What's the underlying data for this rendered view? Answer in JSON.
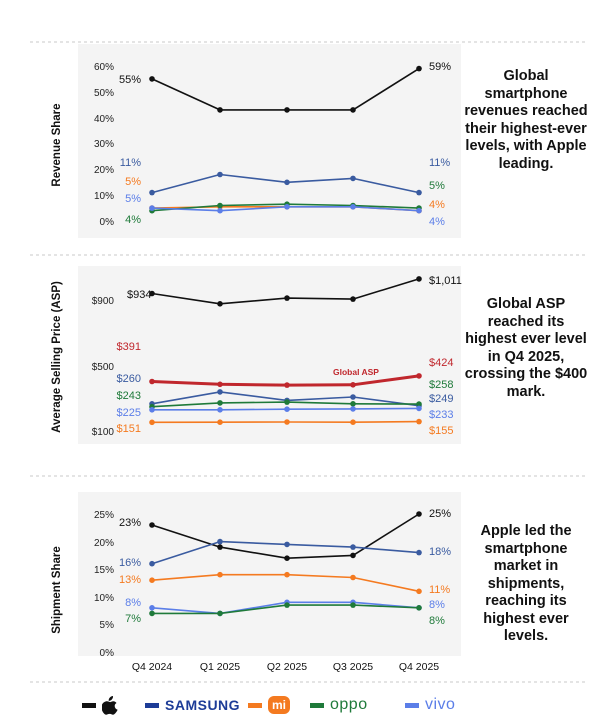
{
  "chart_data": [
    {
      "type": "line",
      "ylabel": "Revenue Share",
      "ylim": [
        0,
        60
      ],
      "yticks": [
        "0%",
        "10%",
        "20%",
        "30%",
        "40%",
        "50%",
        "60%"
      ],
      "categories": [
        "Q4 2024",
        "Q1 2025",
        "Q2 2025",
        "Q3 2025",
        "Q4 2025"
      ],
      "series": [
        {
          "brand": "apple",
          "color": "#111111",
          "values": [
            55,
            43,
            43,
            43,
            59
          ],
          "start_label": "55%",
          "end_label": "59%"
        },
        {
          "brand": "samsung",
          "color": "#3a5ba0",
          "values": [
            11,
            18,
            15,
            16.5,
            11
          ],
          "start_label": "11%",
          "end_label": "11%"
        },
        {
          "brand": "xiaomi",
          "color": "#f47a20",
          "values": [
            5,
            5.5,
            5.5,
            5.5,
            4
          ],
          "start_label": "5%",
          "end_label": "4%"
        },
        {
          "brand": "oppo",
          "color": "#1f7a3a",
          "values": [
            4,
            6,
            6.5,
            6,
            5
          ],
          "start_label": "4%",
          "end_label": "5%"
        },
        {
          "brand": "vivo",
          "color": "#5b7ee8",
          "values": [
            5,
            4,
            5.5,
            5.5,
            4
          ],
          "start_label": "5%",
          "end_label": "4%"
        }
      ],
      "caption": "Global smartphone revenues reached their highest-ever levels, with Apple leading."
    },
    {
      "type": "line",
      "ylabel": "Average Selling Price (ASP)",
      "yticks": [
        "$100",
        "$500",
        "$900"
      ],
      "categories": [
        "Q4 2024",
        "Q1 2025",
        "Q2 2025",
        "Q3 2025",
        "Q4 2025"
      ],
      "series": [
        {
          "brand": "apple",
          "color": "#111111",
          "values": [
            934,
            880,
            910,
            905,
            1011
          ],
          "start_label": "$934",
          "end_label": "$1,011"
        },
        {
          "name": "Global ASP",
          "color": "#c0272d",
          "values": [
            391,
            375,
            370,
            372,
            424
          ],
          "start_label": "$391",
          "end_label": "$424"
        },
        {
          "brand": "samsung",
          "color": "#3a5ba0",
          "values": [
            260,
            330,
            280,
            300,
            249
          ],
          "start_label": "$260",
          "end_label": "$249"
        },
        {
          "brand": "oppo",
          "color": "#1f7a3a",
          "values": [
            243,
            265,
            270,
            260,
            258
          ],
          "start_label": "$243",
          "end_label": "$258"
        },
        {
          "brand": "vivo",
          "color": "#5b7ee8",
          "values": [
            225,
            225,
            228,
            230,
            233
          ],
          "start_label": "$225",
          "end_label": "$233"
        },
        {
          "brand": "xiaomi",
          "color": "#f47a20",
          "values": [
            151,
            152,
            153,
            152,
            155
          ],
          "start_label": "$151",
          "end_label": "$155"
        }
      ],
      "caption": "Global ASP reached its highest ever level in Q4 2025, crossing the $400 mark."
    },
    {
      "type": "line",
      "ylabel": "Shipment Share",
      "ylim": [
        0,
        25
      ],
      "yticks": [
        "0%",
        "5%",
        "10%",
        "15%",
        "20%",
        "25%"
      ],
      "categories": [
        "Q4 2024",
        "Q1 2025",
        "Q2 2025",
        "Q3 2025",
        "Q4 2025"
      ],
      "series": [
        {
          "brand": "apple",
          "color": "#111111",
          "values": [
            23,
            19,
            17,
            17.5,
            25
          ],
          "start_label": "23%",
          "end_label": "25%"
        },
        {
          "brand": "samsung",
          "color": "#3a5ba0",
          "values": [
            16,
            20,
            19.5,
            19,
            18
          ],
          "start_label": "16%",
          "end_label": "18%"
        },
        {
          "brand": "xiaomi",
          "color": "#f47a20",
          "values": [
            13,
            14,
            14,
            13.5,
            11
          ],
          "start_label": "13%",
          "end_label": "11%"
        },
        {
          "brand": "vivo",
          "color": "#5b7ee8",
          "values": [
            8,
            7,
            9,
            9,
            8
          ],
          "start_label": "8%",
          "end_label": "8%"
        },
        {
          "brand": "oppo",
          "color": "#1f7a3a",
          "values": [
            7,
            7,
            8.5,
            8.5,
            8
          ],
          "start_label": "7%",
          "end_label": "8%"
        }
      ],
      "caption": "Apple led the smartphone market in shipments, reaching its highest ever levels."
    }
  ],
  "legend": [
    {
      "brand": "apple",
      "color": "#111111",
      "icon": "apple-logo-icon"
    },
    {
      "brand": "samsung",
      "color": "#1d3c97",
      "text": "SAMSUNG"
    },
    {
      "brand": "xiaomi",
      "color": "#f47a20",
      "text": "mi"
    },
    {
      "brand": "oppo",
      "color": "#1f7a3a",
      "text": "oppo"
    },
    {
      "brand": "vivo",
      "color": "#5b7ee8",
      "text": "vivo"
    }
  ]
}
